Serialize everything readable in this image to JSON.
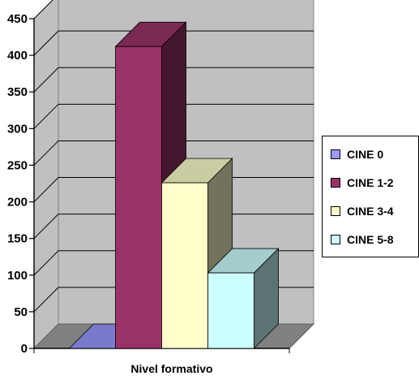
{
  "chart_data": {
    "type": "bar",
    "style": "3d-clustered-column",
    "categories": [
      "Nivel formativo"
    ],
    "series": [
      {
        "name": "CINE 0",
        "values": [
          0
        ],
        "color": "#9999ff"
      },
      {
        "name": "CINE 1-2",
        "values": [
          412
        ],
        "color": "#993366"
      },
      {
        "name": "CINE 3-4",
        "values": [
          226
        ],
        "color": "#ffffcc"
      },
      {
        "name": "CINE 5-8",
        "values": [
          103
        ],
        "color": "#ccffff"
      }
    ],
    "xlabel": "Nivel formativo",
    "ylabel": "",
    "ylim": [
      0,
      450
    ],
    "yticks": [
      "0",
      "50",
      "100",
      "150",
      "200",
      "250",
      "300",
      "350",
      "400",
      "450"
    ],
    "grid": true,
    "legend_position": "right",
    "wall_color": "#c0c0c0",
    "floor_color": "#808080"
  }
}
